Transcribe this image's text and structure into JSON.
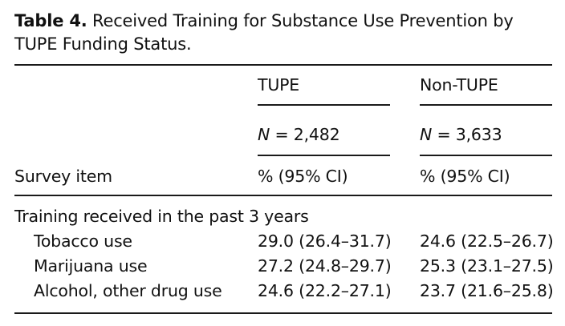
{
  "caption": {
    "label": "Table 4.",
    "text": "Received Training for Substance Use Prevention by TUPE Funding Status."
  },
  "header": {
    "columns": [
      {
        "name": "TUPE",
        "n_symbol": "N",
        "n_value": "= 2,482",
        "stat": "% (95% CI)"
      },
      {
        "name": "Non-TUPE",
        "n_symbol": "N",
        "n_value": "= 3,633",
        "stat": "% (95% CI)"
      }
    ],
    "row_header": "Survey item"
  },
  "section": {
    "title": "Training received in the past 3 years",
    "rows": [
      {
        "label": "Tobacco use",
        "tupe": "29.0 (26.4–31.7)",
        "non_tupe": "24.6 (22.5–26.7)"
      },
      {
        "label": "Marijuana use",
        "tupe": "27.2 (24.8–29.7)",
        "non_tupe": "25.3 (23.1–27.5)"
      },
      {
        "label": "Alcohol, other drug use",
        "tupe": "24.6 (22.2–27.1)",
        "non_tupe": "23.7 (21.6–25.8)"
      }
    ]
  }
}
